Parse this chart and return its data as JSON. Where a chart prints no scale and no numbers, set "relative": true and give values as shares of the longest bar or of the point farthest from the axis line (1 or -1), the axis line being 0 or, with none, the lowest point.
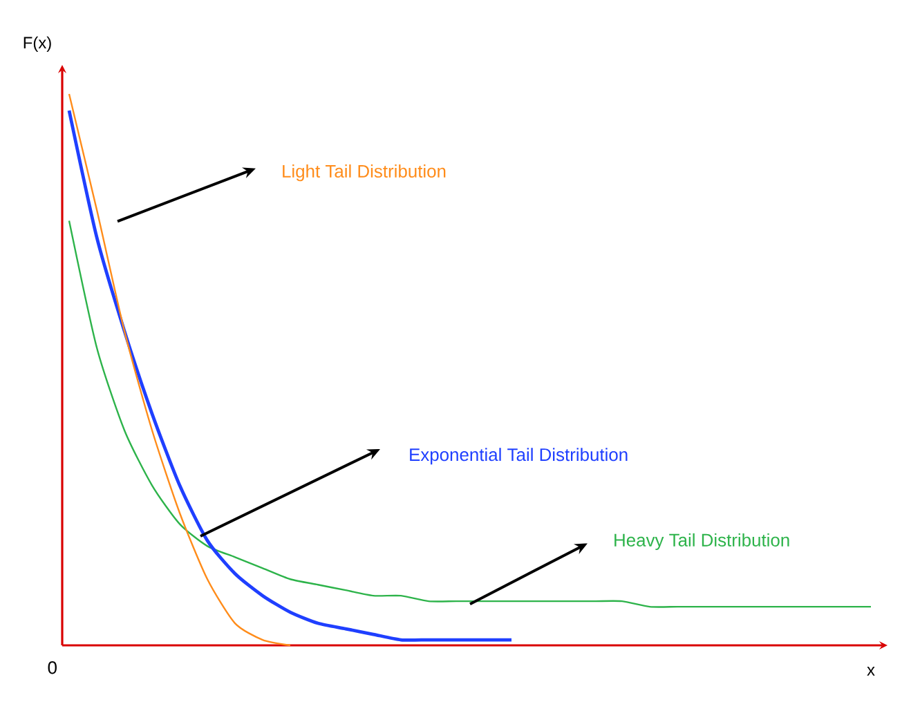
{
  "chart_data": {
    "type": "line",
    "relative": true,
    "xlabel": "x",
    "ylabel": "F(x)",
    "annotations": [
      "0"
    ],
    "categories": [
      null,
      null,
      null,
      null,
      null,
      null,
      null,
      null,
      null,
      null,
      null,
      null,
      null,
      null,
      null,
      null,
      null,
      null,
      null,
      null,
      null,
      null,
      null,
      null,
      null,
      null,
      null,
      null,
      null,
      null
    ],
    "series": [
      {
        "name": "Light Tail Distribution",
        "color": "#ff8c1a",
        "values": [
          1.0,
          0.79,
          0.57,
          0.39,
          0.24,
          0.12,
          0.04,
          0.01,
          0.0,
          null,
          null,
          null,
          null,
          null,
          null,
          null,
          null,
          null,
          null,
          null,
          null,
          null,
          null,
          null,
          null,
          null,
          null,
          null,
          null,
          null
        ]
      },
      {
        "name": "Exponential Tail Distribution",
        "color": "#1f3fff",
        "values": [
          0.97,
          0.74,
          0.57,
          0.42,
          0.29,
          0.19,
          0.13,
          0.09,
          0.06,
          0.04,
          0.03,
          0.02,
          0.01,
          0.01,
          0.01,
          0.01,
          0.01,
          null,
          null,
          null,
          null,
          null,
          null,
          null,
          null,
          null,
          null,
          null,
          null,
          null
        ]
      },
      {
        "name": "Heavy Tail Distribution",
        "color": "#2db34a",
        "values": [
          0.77,
          0.54,
          0.39,
          0.29,
          0.22,
          0.18,
          0.16,
          0.14,
          0.12,
          0.11,
          0.1,
          0.09,
          0.09,
          0.08,
          0.08,
          0.08,
          0.08,
          0.08,
          0.08,
          0.08,
          0.08,
          0.07,
          0.07,
          0.07,
          0.07,
          0.07,
          0.07,
          0.07,
          0.07,
          0.07
        ]
      }
    ]
  }
}
